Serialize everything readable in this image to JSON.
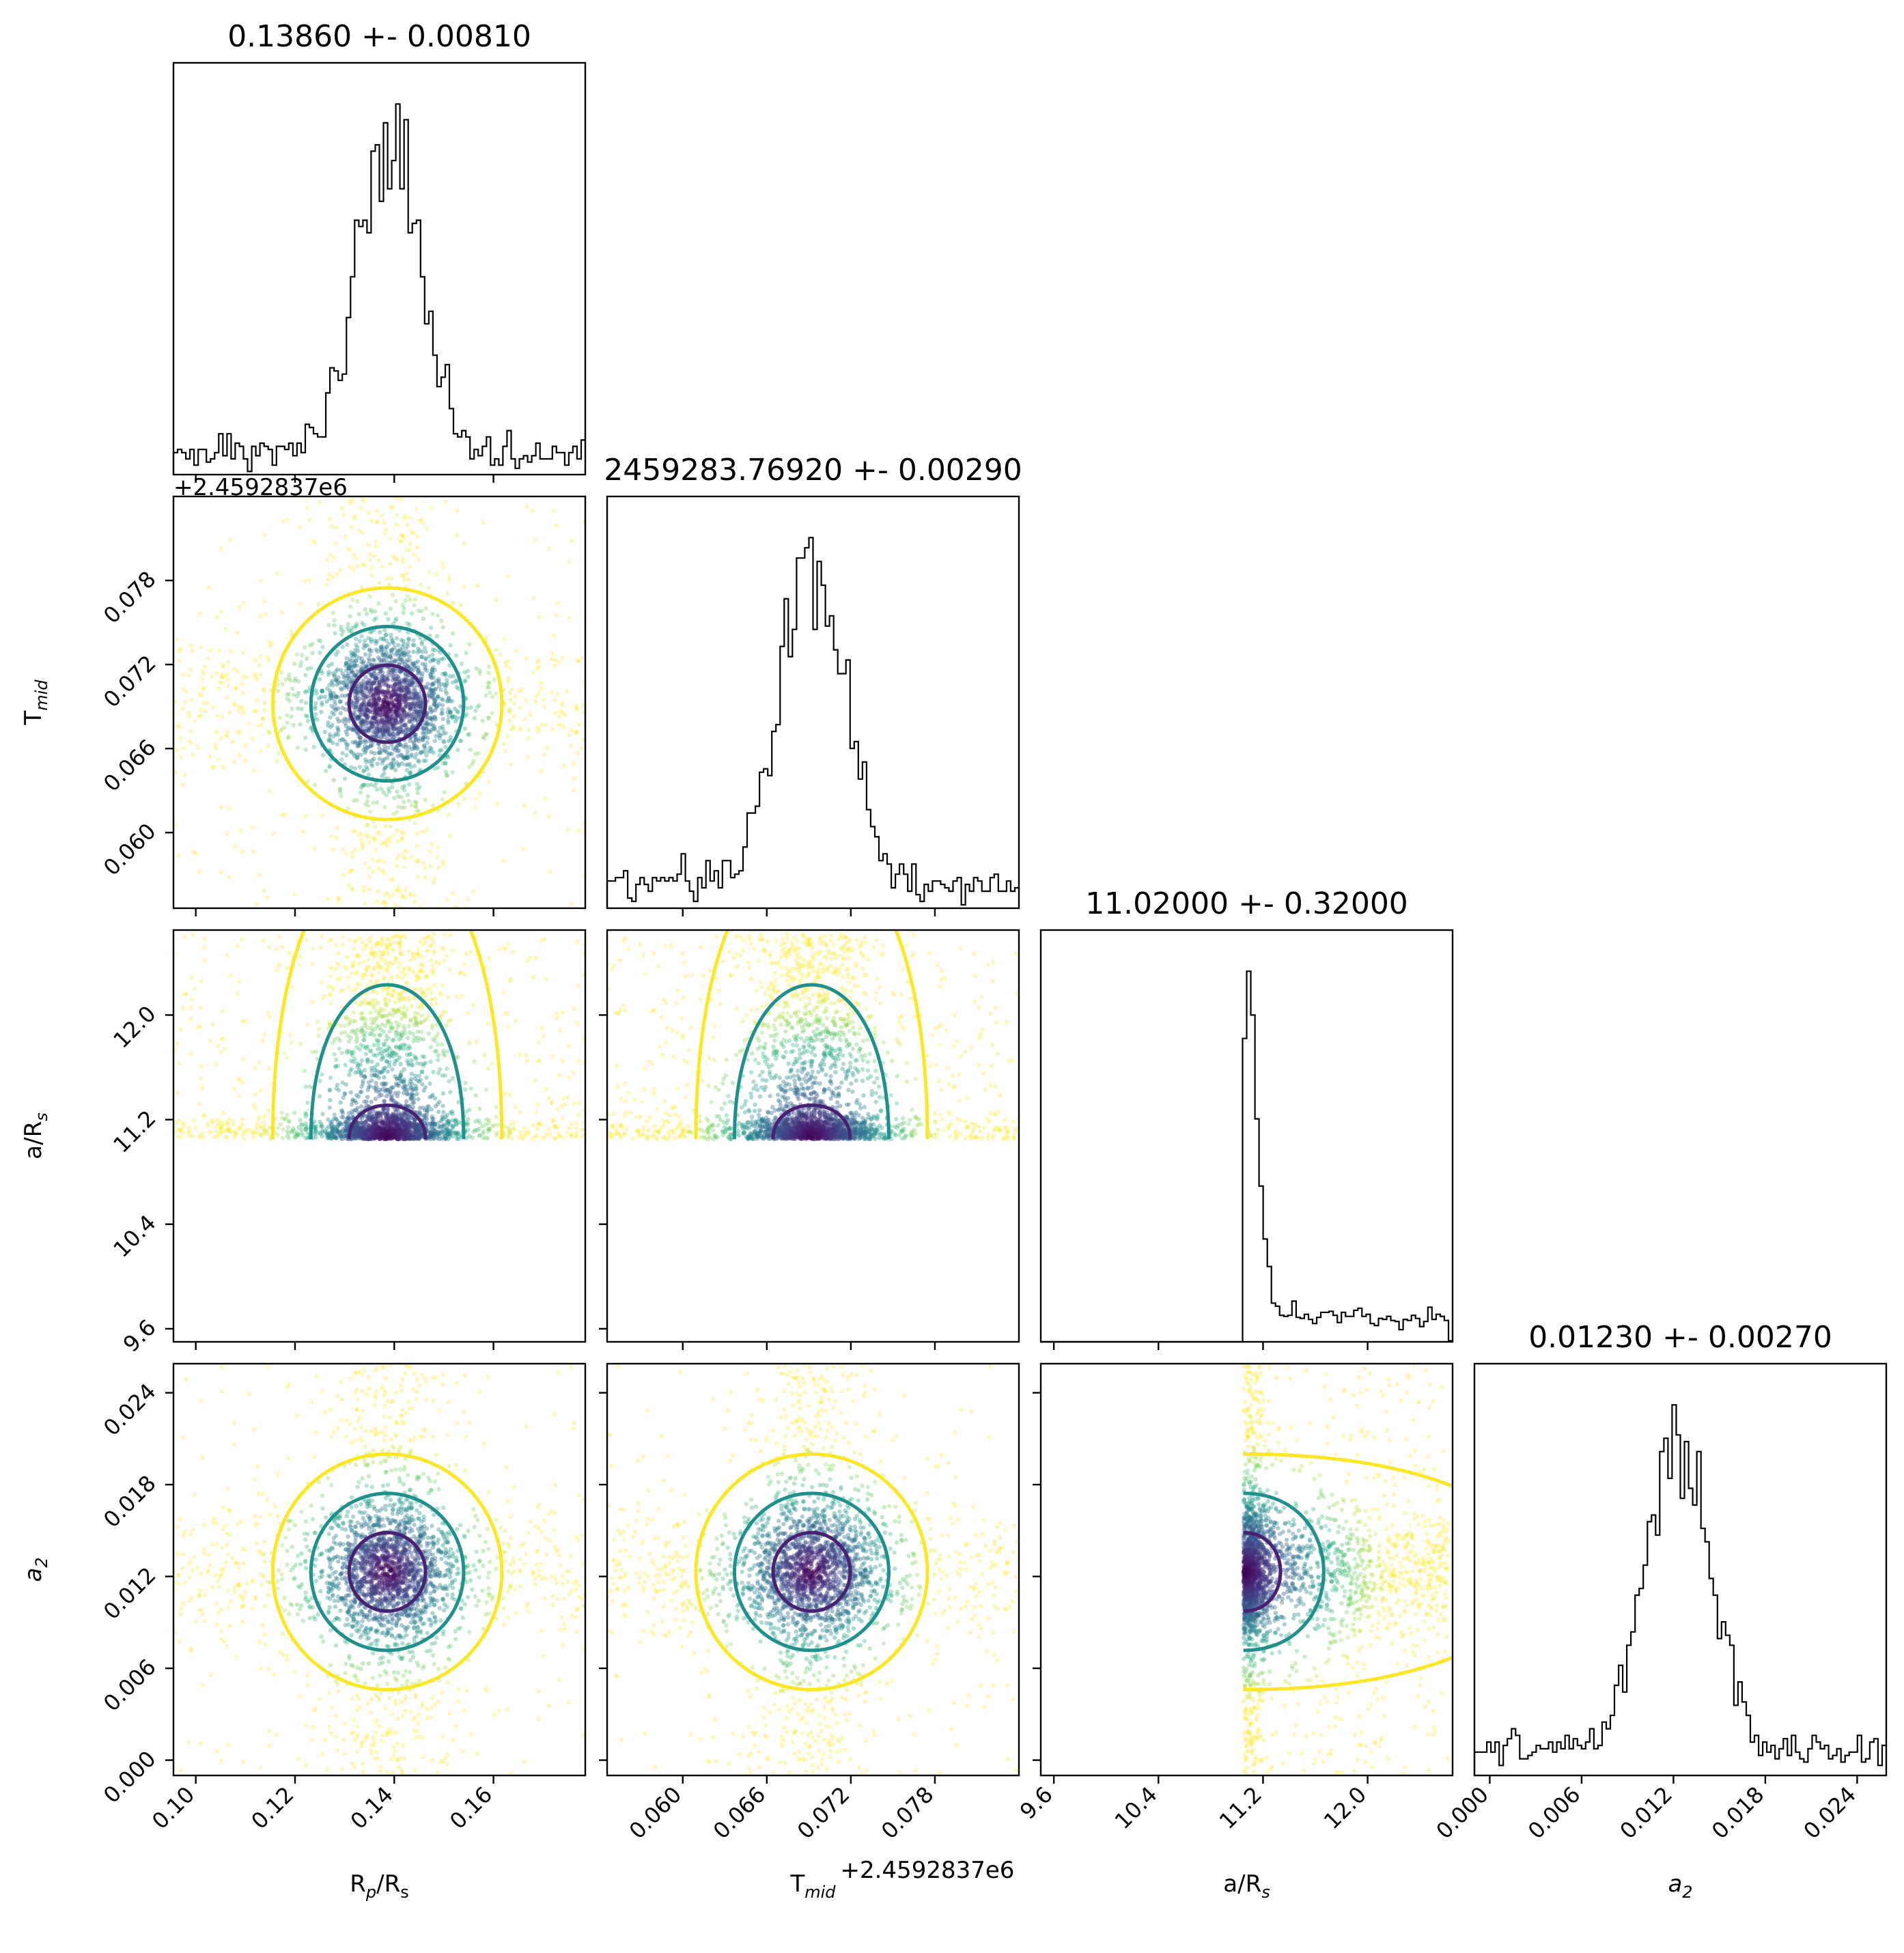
{
  "chart_data": {
    "type": "corner",
    "parameters": [
      {
        "name": "Rp/Rs",
        "median": 0.1386,
        "sigma": 0.0081,
        "range": [
          0.0955,
          0.1785
        ],
        "ticks": [
          0.1,
          0.12,
          0.14,
          0.16
        ],
        "tick_labels": [
          "0.10",
          "0.12",
          "0.14",
          "0.16"
        ],
        "title": "0.13860 +- 0.00810",
        "label": {
          "base": "R",
          "sub": "p",
          "rest": "/R",
          "sub2": "s",
          "italic": false
        }
      },
      {
        "name": "T_mid",
        "median": 0.0692,
        "sigma": 0.0029,
        "range": [
          0.0546,
          0.084
        ],
        "offset_text": "+2.4592837e6",
        "ticks": [
          0.06,
          0.066,
          0.072,
          0.078
        ],
        "tick_labels": [
          "0.060",
          "0.066",
          "0.072",
          "0.078"
        ],
        "title": "2459283.76920 +- 0.00290",
        "label": {
          "base": "T",
          "sub": "mid",
          "italic": false
        }
      },
      {
        "name": "a/Rs",
        "median": 11.02,
        "sigma": 0.32,
        "range": [
          9.5,
          12.65
        ],
        "lower_bound": 11.05,
        "ticks": [
          9.6,
          10.4,
          11.2,
          12.0
        ],
        "tick_labels": [
          "9.6",
          "10.4",
          "11.2",
          "12.0"
        ],
        "title": "11.02000 +- 0.32000",
        "label": {
          "base": "a/R",
          "sub": "s",
          "italic": false
        }
      },
      {
        "name": "a2",
        "median": 0.0123,
        "sigma": 0.0027,
        "range": [
          -0.001,
          0.0259
        ],
        "ticks": [
          0.0,
          0.006,
          0.012,
          0.018,
          0.024
        ],
        "tick_labels": [
          "0.000",
          "0.006",
          "0.012",
          "0.018",
          "0.024"
        ],
        "title": "0.01230 +- 0.00270",
        "label": {
          "base": "a",
          "sub": "2",
          "italic": true
        }
      }
    ],
    "histogram_bins": 100,
    "scatter_colormap": "viridis",
    "contour_levels": [
      "1-sigma",
      "2-sigma",
      "3-sigma"
    ],
    "contour_colors": [
      "#482173",
      "#21908d",
      "#fde725"
    ],
    "grid": false,
    "legend": "none"
  }
}
